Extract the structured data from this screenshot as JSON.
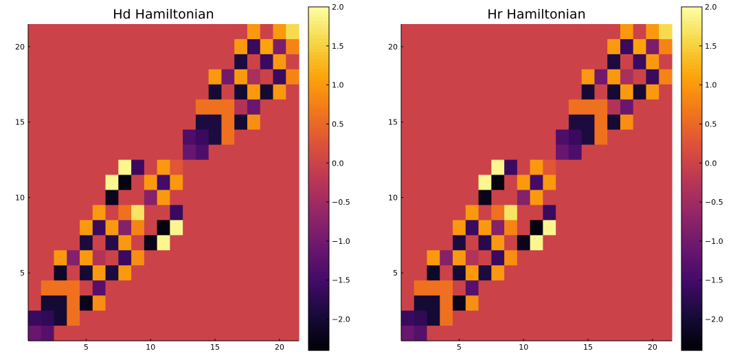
{
  "chart_data": [
    {
      "type": "heatmap",
      "title": "Hd Hamiltonian",
      "xlabel": "",
      "ylabel": "",
      "xlim": [
        0.5,
        21.5
      ],
      "ylim": [
        0.5,
        21.5
      ],
      "xticks": [
        5,
        10,
        15,
        20
      ],
      "yticks": [
        5,
        10,
        15,
        20
      ],
      "clim": [
        -2.4,
        2.0
      ],
      "colormap": "inferno",
      "colorbar_ticks": [
        2.0,
        1.5,
        1.0,
        0.5,
        0.0,
        -0.5,
        -1.0,
        -1.5,
        -2.0
      ],
      "colorbar_tick_labels": [
        "2.0",
        "1.5",
        "1.0",
        "0.5",
        "0.0",
        "−0.5",
        "−1.0",
        "−1.5",
        "−2.0"
      ],
      "grid": false,
      "rows_top_to_bottom": [
        [
          0,
          0,
          0,
          0,
          0,
          0,
          0,
          0,
          0,
          0,
          0,
          0,
          0,
          0,
          0,
          0,
          0,
          1,
          0,
          1,
          1.6
        ],
        [
          0,
          0,
          0,
          0,
          0,
          0,
          0,
          0,
          0,
          0,
          0,
          0,
          0,
          0,
          0,
          0,
          1,
          -1.6,
          1.1,
          -0.9,
          0.8
        ],
        [
          0,
          0,
          0,
          0,
          0,
          0,
          0,
          0,
          0,
          0,
          0,
          0,
          0,
          0,
          0,
          0,
          -1.9,
          0,
          -1.6,
          1,
          0
        ],
        [
          0,
          0,
          0,
          0,
          0,
          0,
          0,
          0,
          0,
          0,
          0,
          0,
          0,
          0,
          1,
          -1,
          1,
          -0.4,
          0,
          -1.6,
          0.8
        ],
        [
          0,
          0,
          0,
          0,
          0,
          0,
          0,
          0,
          0,
          0,
          0,
          0,
          0,
          0,
          -2,
          0,
          -2,
          1,
          -2,
          1,
          0
        ],
        [
          0,
          0,
          0,
          0,
          0,
          0,
          0,
          0,
          0,
          0,
          0,
          0,
          0,
          0.6,
          0.6,
          0.6,
          -0.3,
          -1.1,
          0,
          0,
          0
        ],
        [
          0,
          0,
          0,
          0,
          0,
          0,
          0,
          0,
          0,
          0,
          0,
          0,
          0,
          -1.9,
          -1.9,
          0.6,
          -2,
          0.9,
          0,
          0,
          0
        ],
        [
          0,
          0,
          0,
          0,
          0,
          0,
          0,
          0,
          0,
          0,
          0,
          0,
          -1.4,
          -1.6,
          -1.9,
          0.6,
          0,
          0,
          0,
          0,
          0
        ],
        [
          0,
          0,
          0,
          0,
          0,
          0,
          0,
          0,
          0,
          0,
          0,
          0,
          -1.1,
          -1.4,
          0,
          0,
          0,
          0,
          0,
          0,
          0
        ],
        [
          0,
          0,
          0,
          0,
          0,
          0,
          0,
          1.9,
          -1.6,
          0,
          1,
          0.3,
          0,
          0,
          0,
          0,
          0,
          0,
          0,
          0,
          0
        ],
        [
          0,
          0,
          0,
          0,
          0,
          0,
          1.9,
          -2.3,
          0,
          1,
          -1.5,
          1,
          0,
          0,
          0,
          0,
          0,
          0,
          0,
          0,
          0
        ],
        [
          0,
          0,
          0,
          0,
          0,
          0,
          -2.2,
          0,
          0,
          -0.8,
          1,
          0,
          0,
          0,
          0,
          0,
          0,
          0,
          0,
          0,
          0
        ],
        [
          0,
          0,
          0,
          0,
          0,
          1,
          0,
          0.6,
          1.7,
          0,
          0,
          -1.6,
          0,
          0,
          0,
          0,
          0,
          0,
          0,
          0,
          0
        ],
        [
          0,
          0,
          0,
          0,
          1,
          -1.6,
          1,
          -0.8,
          0.8,
          0,
          -2.3,
          1.9,
          0,
          0,
          0,
          0,
          0,
          0,
          0,
          0,
          0
        ],
        [
          0,
          0,
          0,
          0,
          -1.9,
          0,
          -1.8,
          1,
          0,
          -2.2,
          1.9,
          0,
          0,
          0,
          0,
          0,
          0,
          0,
          0,
          0,
          0
        ],
        [
          0,
          0,
          1,
          -0.8,
          1,
          -0.3,
          0,
          -1.6,
          0.9,
          0,
          0,
          0,
          0,
          0,
          0,
          0,
          0,
          0,
          0,
          0,
          0
        ],
        [
          0,
          0,
          -2.1,
          0,
          -2,
          1,
          -1.9,
          1,
          0,
          0,
          0,
          0,
          0,
          0,
          0,
          0,
          0,
          0,
          0,
          0,
          0
        ],
        [
          0,
          0.6,
          0.6,
          0.6,
          0,
          -1.3,
          0,
          0,
          0,
          0,
          0,
          0,
          0,
          0,
          0,
          0,
          0,
          0,
          0,
          0,
          0
        ],
        [
          0,
          -2.0,
          -2.0,
          0.6,
          -2.2,
          0.9,
          0,
          0,
          0,
          0,
          0,
          0,
          0,
          0,
          0,
          0,
          0,
          0,
          0,
          0,
          0
        ],
        [
          -1.6,
          -1.7,
          -2.0,
          0.6,
          0,
          0,
          0,
          0,
          0,
          0,
          0,
          0,
          0,
          0,
          0,
          0,
          0,
          0,
          0,
          0,
          0
        ],
        [
          -1.1,
          -1.3,
          0,
          0,
          0,
          0,
          0,
          0,
          0,
          0,
          0,
          0,
          0,
          0,
          0,
          0,
          0,
          0,
          0,
          0,
          0
        ]
      ]
    },
    {
      "type": "heatmap",
      "title": "Hr Hamiltonian",
      "xlabel": "",
      "ylabel": "",
      "xlim": [
        0.5,
        21.5
      ],
      "ylim": [
        0.5,
        21.5
      ],
      "xticks": [
        5,
        10,
        15,
        20
      ],
      "yticks": [
        5,
        10,
        15,
        20
      ],
      "clim": [
        -2.4,
        2.0
      ],
      "colormap": "inferno",
      "colorbar_ticks": [
        2.0,
        1.5,
        1.0,
        0.5,
        0.0,
        -0.5,
        -1.0,
        -1.5,
        -2.0
      ],
      "colorbar_tick_labels": [
        "2.0",
        "1.5",
        "1.0",
        "0.5",
        "0.0",
        "−0.5",
        "−1.0",
        "−1.5",
        "−2.0"
      ],
      "grid": false,
      "rows_top_to_bottom": [
        [
          0,
          0,
          0,
          0,
          0,
          0,
          0,
          0,
          0,
          0,
          0,
          0,
          0,
          0,
          0,
          0,
          0,
          1,
          0,
          1,
          1.6
        ],
        [
          0,
          0,
          0,
          0,
          0,
          0,
          0,
          0,
          0,
          0,
          0,
          0,
          0,
          0,
          0,
          0,
          1,
          -1.6,
          1.1,
          -0.9,
          0.8
        ],
        [
          0,
          0,
          0,
          0,
          0,
          0,
          0,
          0,
          0,
          0,
          0,
          0,
          0,
          0,
          0,
          0,
          -1.9,
          0,
          -1.6,
          1,
          0
        ],
        [
          0,
          0,
          0,
          0,
          0,
          0,
          0,
          0,
          0,
          0,
          0,
          0,
          0,
          0,
          1,
          -1,
          1,
          -0.4,
          0,
          -1.6,
          0.8
        ],
        [
          0,
          0,
          0,
          0,
          0,
          0,
          0,
          0,
          0,
          0,
          0,
          0,
          0,
          0,
          -2,
          0,
          -2,
          1,
          -2,
          1,
          0
        ],
        [
          0,
          0,
          0,
          0,
          0,
          0,
          0,
          0,
          0,
          0,
          0,
          0,
          0,
          0.6,
          0.6,
          0.6,
          -0.3,
          -1.1,
          0,
          0,
          0
        ],
        [
          0,
          0,
          0,
          0,
          0,
          0,
          0,
          0,
          0,
          0,
          0,
          0,
          0,
          -1.9,
          -1.9,
          0.6,
          -2,
          0.9,
          0,
          0,
          0
        ],
        [
          0,
          0,
          0,
          0,
          0,
          0,
          0,
          0,
          0,
          0,
          0,
          0,
          -1.4,
          -1.6,
          -1.9,
          0.6,
          0,
          0,
          0,
          0,
          0
        ],
        [
          0,
          0,
          0,
          0,
          0,
          0,
          0,
          0,
          0,
          0,
          0,
          0,
          -1.1,
          -1.4,
          0,
          0,
          0,
          0,
          0,
          0,
          0
        ],
        [
          0,
          0,
          0,
          0,
          0,
          0,
          0,
          1.9,
          -1.6,
          0,
          1,
          0.3,
          0,
          0,
          0,
          0,
          0,
          0,
          0,
          0,
          0
        ],
        [
          0,
          0,
          0,
          0,
          0,
          0,
          1.9,
          -2.3,
          0,
          1,
          -1.5,
          1,
          0,
          0,
          0,
          0,
          0,
          0,
          0,
          0,
          0
        ],
        [
          0,
          0,
          0,
          0,
          0,
          0,
          -2.2,
          0,
          0,
          -0.8,
          1,
          0,
          0,
          0,
          0,
          0,
          0,
          0,
          0,
          0,
          0
        ],
        [
          0,
          0,
          0,
          0,
          0,
          1,
          0,
          0.6,
          1.7,
          0,
          0,
          -1.6,
          0,
          0,
          0,
          0,
          0,
          0,
          0,
          0,
          0
        ],
        [
          0,
          0,
          0,
          0,
          1,
          -1.6,
          1,
          -0.8,
          0.8,
          0,
          -2.3,
          1.9,
          0,
          0,
          0,
          0,
          0,
          0,
          0,
          0,
          0
        ],
        [
          0,
          0,
          0,
          0,
          -1.9,
          0,
          -1.8,
          1,
          0,
          -2.2,
          1.9,
          0,
          0,
          0,
          0,
          0,
          0,
          0,
          0,
          0,
          0
        ],
        [
          0,
          0,
          1,
          -0.8,
          1,
          -0.3,
          0,
          -1.6,
          0.9,
          0,
          0,
          0,
          0,
          0,
          0,
          0,
          0,
          0,
          0,
          0,
          0
        ],
        [
          0,
          0,
          -2.1,
          0,
          -2,
          1,
          -1.9,
          1,
          0,
          0,
          0,
          0,
          0,
          0,
          0,
          0,
          0,
          0,
          0,
          0,
          0
        ],
        [
          0,
          0.6,
          0.6,
          0.6,
          0,
          -1.3,
          0,
          0,
          0,
          0,
          0,
          0,
          0,
          0,
          0,
          0,
          0,
          0,
          0,
          0,
          0
        ],
        [
          0,
          -2.0,
          -2.0,
          0.6,
          -2.2,
          0.9,
          0,
          0,
          0,
          0,
          0,
          0,
          0,
          0,
          0,
          0,
          0,
          0,
          0,
          0,
          0
        ],
        [
          -1.6,
          -1.7,
          -2.0,
          0.6,
          0,
          0,
          0,
          0,
          0,
          0,
          0,
          0,
          0,
          0,
          0,
          0,
          0,
          0,
          0,
          0,
          0
        ],
        [
          -1.1,
          -1.3,
          0,
          0,
          0,
          0,
          0,
          0,
          0,
          0,
          0,
          0,
          0,
          0,
          0,
          0,
          0,
          0,
          0,
          0,
          0
        ]
      ]
    }
  ]
}
